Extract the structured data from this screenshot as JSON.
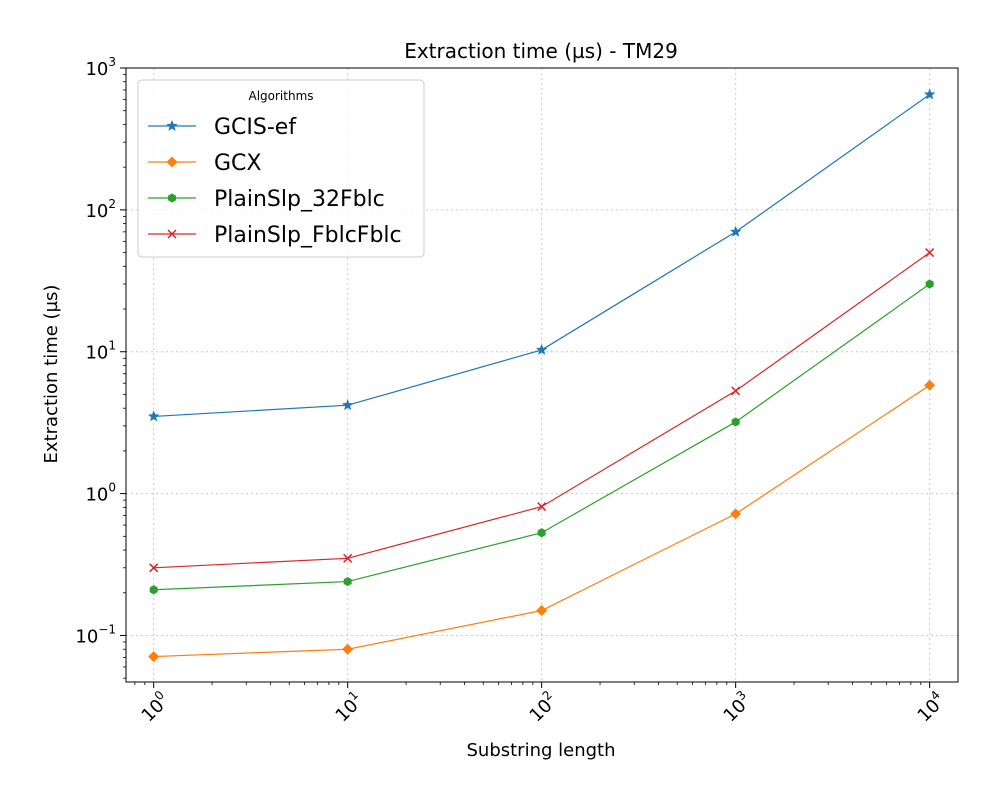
{
  "chart_data": {
    "type": "line",
    "title": "Extraction time (µs) - TM29",
    "xlabel": "Substring length",
    "ylabel": "Extraction time (µs)",
    "xscale": "log",
    "yscale": "log",
    "xlim": [
      0.72,
      14000
    ],
    "ylim": [
      0.047,
      1000
    ],
    "x": [
      1,
      10,
      100,
      1000,
      10000
    ],
    "x_ticks": [
      {
        "base": "10",
        "exp": "0",
        "value": 1
      },
      {
        "base": "10",
        "exp": "1",
        "value": 10
      },
      {
        "base": "10",
        "exp": "2",
        "value": 100
      },
      {
        "base": "10",
        "exp": "3",
        "value": 1000
      },
      {
        "base": "10",
        "exp": "4",
        "value": 10000
      }
    ],
    "y_ticks": [
      {
        "base": "10",
        "exp": "−1",
        "value": 0.1
      },
      {
        "base": "10",
        "exp": "0",
        "value": 1
      },
      {
        "base": "10",
        "exp": "1",
        "value": 10
      },
      {
        "base": "10",
        "exp": "2",
        "value": 100
      },
      {
        "base": "10",
        "exp": "3",
        "value": 1000
      }
    ],
    "grid": true,
    "legend": {
      "title": "Algorithms",
      "position": "top-left"
    },
    "series": [
      {
        "name": "GCIS-ef",
        "color": "#1f77b4",
        "marker": "star",
        "values": [
          3.5,
          4.2,
          10.3,
          70,
          650
        ]
      },
      {
        "name": "GCX",
        "color": "#ff7f0e",
        "marker": "diamond",
        "values": [
          0.071,
          0.08,
          0.15,
          0.72,
          5.8
        ]
      },
      {
        "name": "PlainSlp_32Fblc",
        "color": "#2ca02c",
        "marker": "hexagon",
        "values": [
          0.21,
          0.24,
          0.53,
          3.2,
          30
        ]
      },
      {
        "name": "PlainSlp_FblcFblc",
        "color": "#d62728",
        "marker": "x",
        "values": [
          0.3,
          0.35,
          0.81,
          5.3,
          50
        ]
      }
    ]
  }
}
